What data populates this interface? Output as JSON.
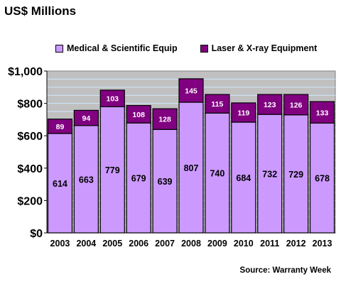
{
  "chart_data": {
    "type": "bar",
    "stacked": true,
    "title": "US$ Millions",
    "categories": [
      "2003",
      "2004",
      "2005",
      "2006",
      "2007",
      "2008",
      "2009",
      "2010",
      "2011",
      "2012",
      "2013"
    ],
    "series": [
      {
        "name": "Medical & Scientific Equip",
        "color": "#cc99ff",
        "values": [
          614,
          663,
          779,
          679,
          639,
          807,
          740,
          684,
          732,
          729,
          678
        ]
      },
      {
        "name": "Laser & X-ray Equipment",
        "color": "#800080",
        "values": [
          89,
          94,
          103,
          108,
          128,
          145,
          115,
          119,
          123,
          126,
          133
        ]
      }
    ],
    "y_ticks": [
      "$0",
      "$200",
      "$400",
      "$600",
      "$800",
      "$1,000"
    ],
    "ylim": [
      0,
      1000
    ],
    "grid": true,
    "legend_position": "top",
    "plot_background": "#c0c0c0",
    "gridline_color": "#cfe8ff"
  },
  "source": "Source: Warranty Week"
}
